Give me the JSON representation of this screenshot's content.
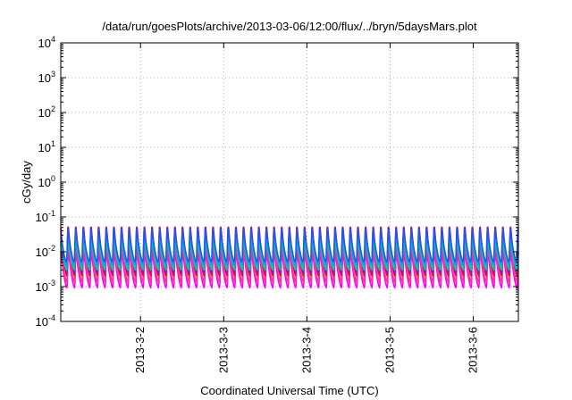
{
  "chart_data": {
    "type": "line",
    "title": "/data/run/goesPlots/archive/2013-03-06/12:00/flux/../bryn/5daysMars.plot",
    "xlabel": "Coordinated Universal Time (UTC)",
    "ylabel": "cGy/day",
    "yscale": "log",
    "ylim": [
      0.0001,
      10000
    ],
    "xlim": [
      "2013-03-01T01:00",
      "2013-03-06T13:00"
    ],
    "y_ticks": [
      {
        "base": "10",
        "exp": "-4"
      },
      {
        "base": "10",
        "exp": "-3"
      },
      {
        "base": "10",
        "exp": "-2"
      },
      {
        "base": "10",
        "exp": "-1"
      },
      {
        "base": "10",
        "exp": "0"
      },
      {
        "base": "10",
        "exp": "1"
      },
      {
        "base": "10",
        "exp": "2"
      },
      {
        "base": "10",
        "exp": "3"
      },
      {
        "base": "10",
        "exp": "4"
      }
    ],
    "x_ticks": [
      "2013-3-2",
      "2013-3-3",
      "2013-3-4",
      "2013-3-5",
      "2013-3-6"
    ],
    "grid": true,
    "oscillation_period_hours": 2.2,
    "series": [
      {
        "color": "#ff00ff",
        "min": 0.0009,
        "max": 0.012
      },
      {
        "color": "#ff3399",
        "min": 0.0013,
        "max": 0.02
      },
      {
        "color": "#cc2200",
        "min": 0.002,
        "max": 0.07
      },
      {
        "color": "#9900ff",
        "min": 0.0025,
        "max": 0.06
      },
      {
        "color": "#00cc88",
        "min": 0.003,
        "max": 0.025
      },
      {
        "color": "#00aaee",
        "min": 0.004,
        "max": 0.035
      },
      {
        "color": "#2255ee",
        "min": 0.005,
        "max": 0.05
      }
    ]
  }
}
